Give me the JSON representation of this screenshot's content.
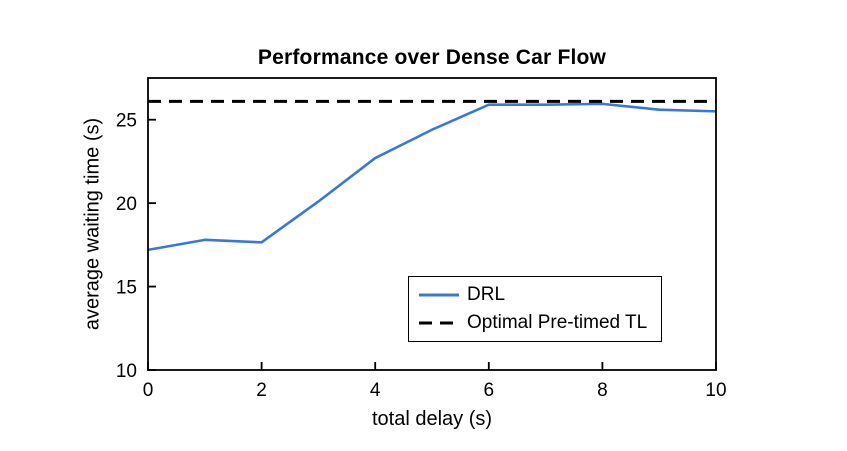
{
  "chart_data": {
    "type": "line",
    "title": "Performance over Dense Car Flow",
    "xlabel": "total delay (s)",
    "ylabel": "average waiting time (s)",
    "xlim": [
      0,
      10
    ],
    "ylim": [
      10,
      27.5
    ],
    "xticks": [
      0,
      2,
      4,
      6,
      8,
      10
    ],
    "yticks": [
      10,
      15,
      20,
      25
    ],
    "grid": false,
    "legend_position": "inside lower right",
    "series": [
      {
        "name": "DRL",
        "color": "#3b77db",
        "style": "solid",
        "width": 2.6,
        "x": [
          0,
          1,
          2,
          3,
          4,
          5,
          6,
          7,
          8,
          9,
          10
        ],
        "y": [
          17.2,
          17.8,
          17.65,
          20.1,
          22.7,
          24.4,
          25.9,
          25.9,
          25.95,
          25.6,
          25.5
        ]
      },
      {
        "name": "Optimal Pre-timed TL",
        "color": "#000000",
        "style": "dashed",
        "width": 3,
        "x": [
          0,
          10
        ],
        "y": [
          26.1,
          26.1
        ]
      }
    ]
  }
}
